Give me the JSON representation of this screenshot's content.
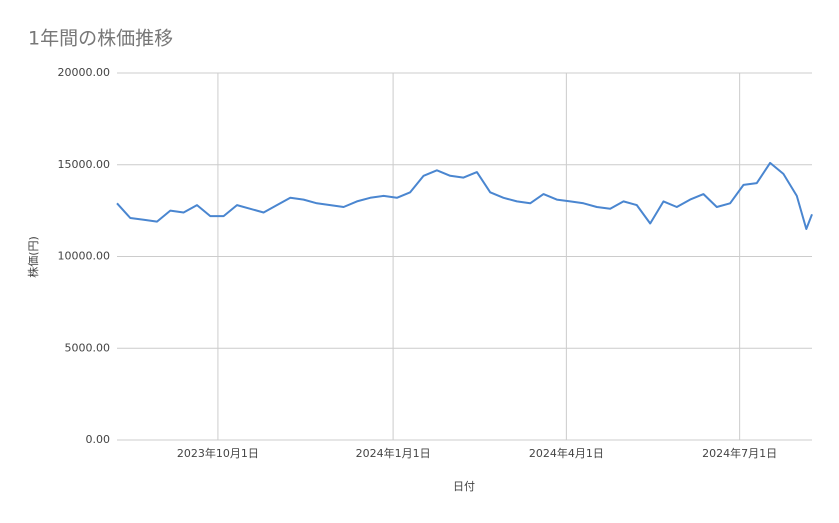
{
  "chart_data": {
    "type": "line",
    "title": "1年間の株価推移",
    "x_label": "日付",
    "y_label": "株価(円)",
    "x": [
      "2023-08-09",
      "2023-08-16",
      "2023-08-23",
      "2023-08-30",
      "2023-09-06",
      "2023-09-13",
      "2023-09-20",
      "2023-09-27",
      "2023-10-04",
      "2023-10-11",
      "2023-10-18",
      "2023-10-25",
      "2023-11-01",
      "2023-11-08",
      "2023-11-15",
      "2023-11-22",
      "2023-11-29",
      "2023-12-06",
      "2023-12-13",
      "2023-12-20",
      "2023-12-27",
      "2024-01-03",
      "2024-01-10",
      "2024-01-17",
      "2024-01-24",
      "2024-01-31",
      "2024-02-07",
      "2024-02-14",
      "2024-02-21",
      "2024-02-28",
      "2024-03-06",
      "2024-03-13",
      "2024-03-20",
      "2024-03-27",
      "2024-04-03",
      "2024-04-10",
      "2024-04-17",
      "2024-04-24",
      "2024-05-01",
      "2024-05-08",
      "2024-05-15",
      "2024-05-22",
      "2024-05-29",
      "2024-06-05",
      "2024-06-12",
      "2024-06-19",
      "2024-06-26",
      "2024-07-03",
      "2024-07-10",
      "2024-07-17",
      "2024-07-24",
      "2024-07-31",
      "2024-08-05",
      "2024-08-08"
    ],
    "series": [
      {
        "name": "株価",
        "color": "#4a86d0",
        "values": [
          12900,
          12100,
          12000,
          11900,
          12500,
          12400,
          12800,
          12200,
          12200,
          12800,
          12600,
          12400,
          12800,
          13200,
          13100,
          12900,
          12800,
          12700,
          13000,
          13200,
          13300,
          13200,
          13500,
          14400,
          14700,
          14400,
          14300,
          14600,
          13500,
          13200,
          13000,
          12900,
          13400,
          13100,
          13000,
          12900,
          12700,
          12600,
          13000,
          12800,
          11800,
          13000,
          12700,
          13100,
          13400,
          12700,
          12900,
          13900,
          14000,
          15100,
          14500,
          13300,
          11500,
          12300
        ]
      }
    ],
    "xlim": [
      "2023-08-09",
      "2024-08-08"
    ],
    "xticks": [
      {
        "value": "2023-10-01",
        "label": "2023年10月1日"
      },
      {
        "value": "2024-01-01",
        "label": "2024年1月1日"
      },
      {
        "value": "2024-04-01",
        "label": "2024年4月1日"
      },
      {
        "value": "2024-07-01",
        "label": "2024年7月1日"
      }
    ],
    "ylim": [
      0,
      20000
    ],
    "yticks": [
      {
        "value": 0,
        "label": "0.00"
      },
      {
        "value": 5000,
        "label": "5000.00"
      },
      {
        "value": 10000,
        "label": "10000.00"
      },
      {
        "value": 15000,
        "label": "15000.00"
      },
      {
        "value": 20000,
        "label": "20000.00"
      }
    ],
    "grid": true
  }
}
